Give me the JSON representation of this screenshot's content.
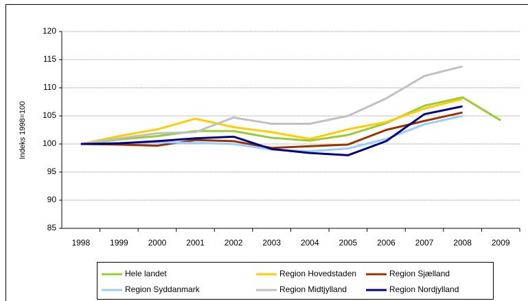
{
  "chart_data": {
    "type": "line",
    "y_label": "Indeks 1998=100",
    "categories": [
      "1998",
      "1999",
      "2000",
      "2001",
      "2002",
      "2003",
      "2004",
      "2005",
      "2006",
      "2007",
      "2008",
      "2009"
    ],
    "series": [
      {
        "name": "Hele landet",
        "color": "#99cc33",
        "values": [
          100,
          100.8,
          101.4,
          102.3,
          102.3,
          101.1,
          100.6,
          101.6,
          103.7,
          106.8,
          108.3,
          104.2
        ]
      },
      {
        "name": "Region Hovedstaden",
        "color": "#ffcc00",
        "values": [
          100,
          101.4,
          102.6,
          104.5,
          103.0,
          102.1,
          100.9,
          102.6,
          103.9,
          106.3,
          108.0,
          null
        ]
      },
      {
        "name": "Region Sjælland",
        "color": "#993300",
        "values": [
          100,
          99.9,
          99.7,
          100.7,
          100.5,
          99.3,
          99.6,
          99.9,
          102.5,
          104.1,
          105.6,
          null
        ]
      },
      {
        "name": "Region Syddanmark",
        "color": "#99ccff",
        "values": [
          100,
          100.2,
          100.3,
          100.2,
          100.0,
          99.0,
          98.7,
          99.2,
          100.9,
          103.5,
          105.0,
          null
        ]
      },
      {
        "name": "Region Midtjylland",
        "color": "#c0c0c0",
        "values": [
          100,
          101.0,
          101.9,
          102.1,
          104.7,
          103.6,
          103.6,
          105.0,
          108.1,
          112.1,
          113.8,
          null
        ]
      },
      {
        "name": "Region Nordjylland",
        "color": "#000080",
        "values": [
          100,
          100.1,
          100.5,
          101.0,
          101.3,
          99.1,
          98.4,
          98.0,
          100.5,
          105.3,
          106.7,
          null
        ]
      }
    ],
    "ylim": [
      85,
      120
    ],
    "yticks": [
      85,
      90,
      95,
      100,
      105,
      110,
      115,
      120
    ],
    "grid": true,
    "legend": "bottom"
  }
}
